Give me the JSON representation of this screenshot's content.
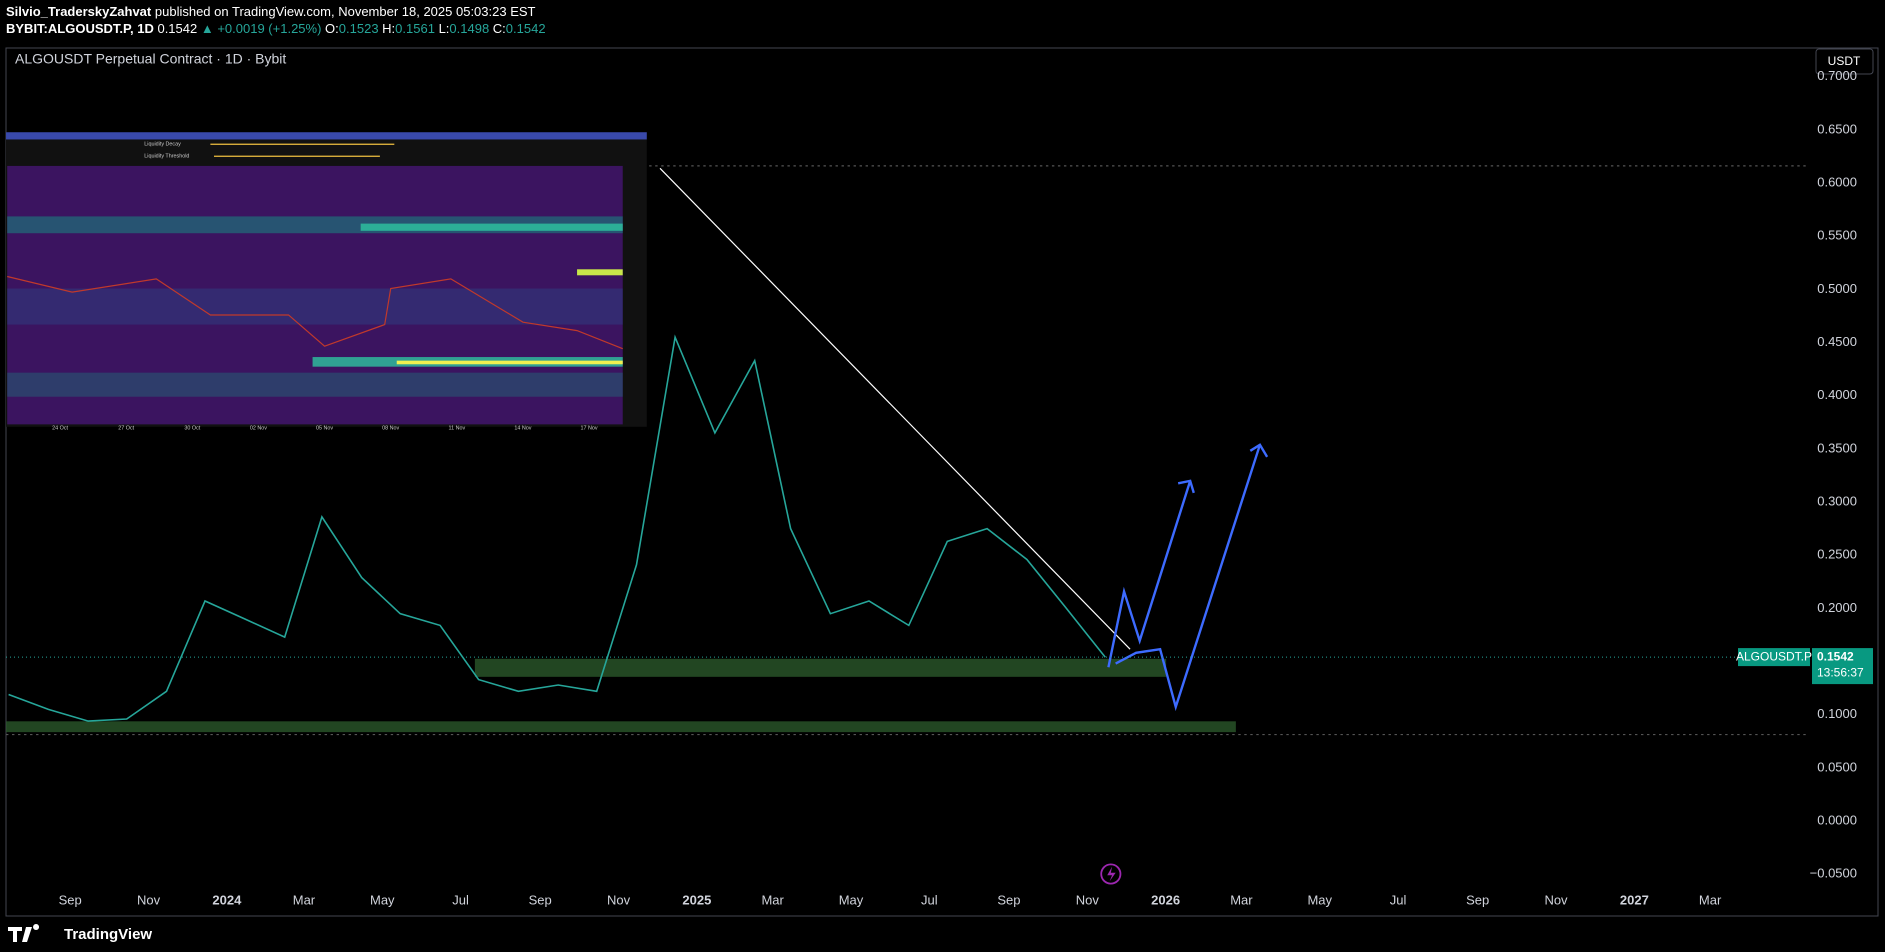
{
  "header": {
    "author": "Silvio_TraderskyZahvat",
    "published": "published on TradingView.com, November 18, 2025 05:03:23 EST",
    "symbol": "BYBIT:ALGOUSDT.P, 1D",
    "last": "0.1542",
    "change": "▲ +0.0019 (+1.25%)",
    "o_label": "O:",
    "o": "0.1523",
    "h_label": "H:",
    "h": "0.1561",
    "l_label": "L:",
    "l": "0.1498",
    "c_label": "C:",
    "c": "0.1542"
  },
  "chart_data": {
    "type": "line",
    "title": "ALGOUSDT Perpetual Contract · 1D · Bybit",
    "currency": "USDT",
    "x": [
      "2023-07",
      "2023-08",
      "2023-09",
      "2023-10",
      "2023-11",
      "2023-12",
      "2024-01",
      "2024-02",
      "2024-03",
      "2024-04",
      "2024-05",
      "2024-06",
      "2024-07",
      "2024-08",
      "2024-09",
      "2024-10",
      "2024-11",
      "2024-12",
      "2025-01",
      "2025-02",
      "2025-03",
      "2025-04",
      "2025-05",
      "2025-06",
      "2025-07",
      "2025-08",
      "2025-09",
      "2025-10",
      "2025-11"
    ],
    "series": [
      {
        "name": "ALGOUSDT.P",
        "color": "#26a69a",
        "values": [
          0.119,
          0.105,
          0.094,
          0.096,
          0.122,
          0.207,
          0.19,
          0.173,
          0.286,
          0.229,
          0.195,
          0.184,
          0.133,
          0.122,
          0.128,
          0.122,
          0.241,
          0.455,
          0.365,
          0.433,
          0.275,
          0.195,
          0.207,
          0.184,
          0.263,
          0.275,
          0.246,
          0.201,
          0.154
        ]
      }
    ],
    "xlim": [
      "2023-07-13",
      "2027-05-17"
    ],
    "xticks": [
      {
        "value": "2023-09",
        "label": "Sep"
      },
      {
        "value": "2023-11",
        "label": "Nov"
      },
      {
        "value": "2024-01",
        "label": "2024"
      },
      {
        "value": "2024-03",
        "label": "Mar"
      },
      {
        "value": "2024-05",
        "label": "May"
      },
      {
        "value": "2024-07",
        "label": "Jul"
      },
      {
        "value": "2024-09",
        "label": "Sep"
      },
      {
        "value": "2024-11",
        "label": "Nov"
      },
      {
        "value": "2025-01",
        "label": "2025"
      },
      {
        "value": "2025-03",
        "label": "Mar"
      },
      {
        "value": "2025-05",
        "label": "May"
      },
      {
        "value": "2025-07",
        "label": "Jul"
      },
      {
        "value": "2025-09",
        "label": "Sep"
      },
      {
        "value": "2025-11",
        "label": "Nov"
      },
      {
        "value": "2026-01",
        "label": "2026"
      },
      {
        "value": "2026-03",
        "label": "Mar"
      },
      {
        "value": "2026-05",
        "label": "May"
      },
      {
        "value": "2026-07",
        "label": "Jul"
      },
      {
        "value": "2026-09",
        "label": "Sep"
      },
      {
        "value": "2026-11",
        "label": "Nov"
      },
      {
        "value": "2027-01",
        "label": "2027"
      },
      {
        "value": "2027-03",
        "label": "Mar"
      }
    ],
    "ylim": [
      -0.062,
      0.727
    ],
    "yticks": [
      {
        "value": 0.7,
        "label": "0.7000"
      },
      {
        "value": 0.65,
        "label": "0.6500"
      },
      {
        "value": 0.6,
        "label": "0.6000"
      },
      {
        "value": 0.55,
        "label": "0.5500"
      },
      {
        "value": 0.5,
        "label": "0.5000"
      },
      {
        "value": 0.45,
        "label": "0.4500"
      },
      {
        "value": 0.4,
        "label": "0.4000"
      },
      {
        "value": 0.35,
        "label": "0.3500"
      },
      {
        "value": 0.3,
        "label": "0.3000"
      },
      {
        "value": 0.25,
        "label": "0.2500"
      },
      {
        "value": 0.2,
        "label": "0.2000"
      },
      {
        "value": 0.15,
        "label": "0.1500"
      },
      {
        "value": 0.1,
        "label": "0.1000"
      },
      {
        "value": 0.05,
        "label": "0.0500"
      },
      {
        "value": 0,
        "label": "0.0000"
      },
      {
        "value": -0.05,
        "label": "−0.0500"
      }
    ],
    "grid": false,
    "price_tag": {
      "symbol": "ALGOUSDT.P",
      "price": 0.1542,
      "price_label": "0.1542",
      "countdown": "13:56:37"
    }
  },
  "inset": {
    "controls": [
      "Liquidity Decay",
      "Liquidity Threshold"
    ],
    "dates": [
      "24 Oct",
      "27 Oct",
      "30 Oct",
      "02 Nov",
      "05 Nov",
      "08 Nov",
      "11 Nov",
      "14 Nov",
      "17 Nov"
    ]
  },
  "footer": {
    "brand": "TradingView"
  }
}
